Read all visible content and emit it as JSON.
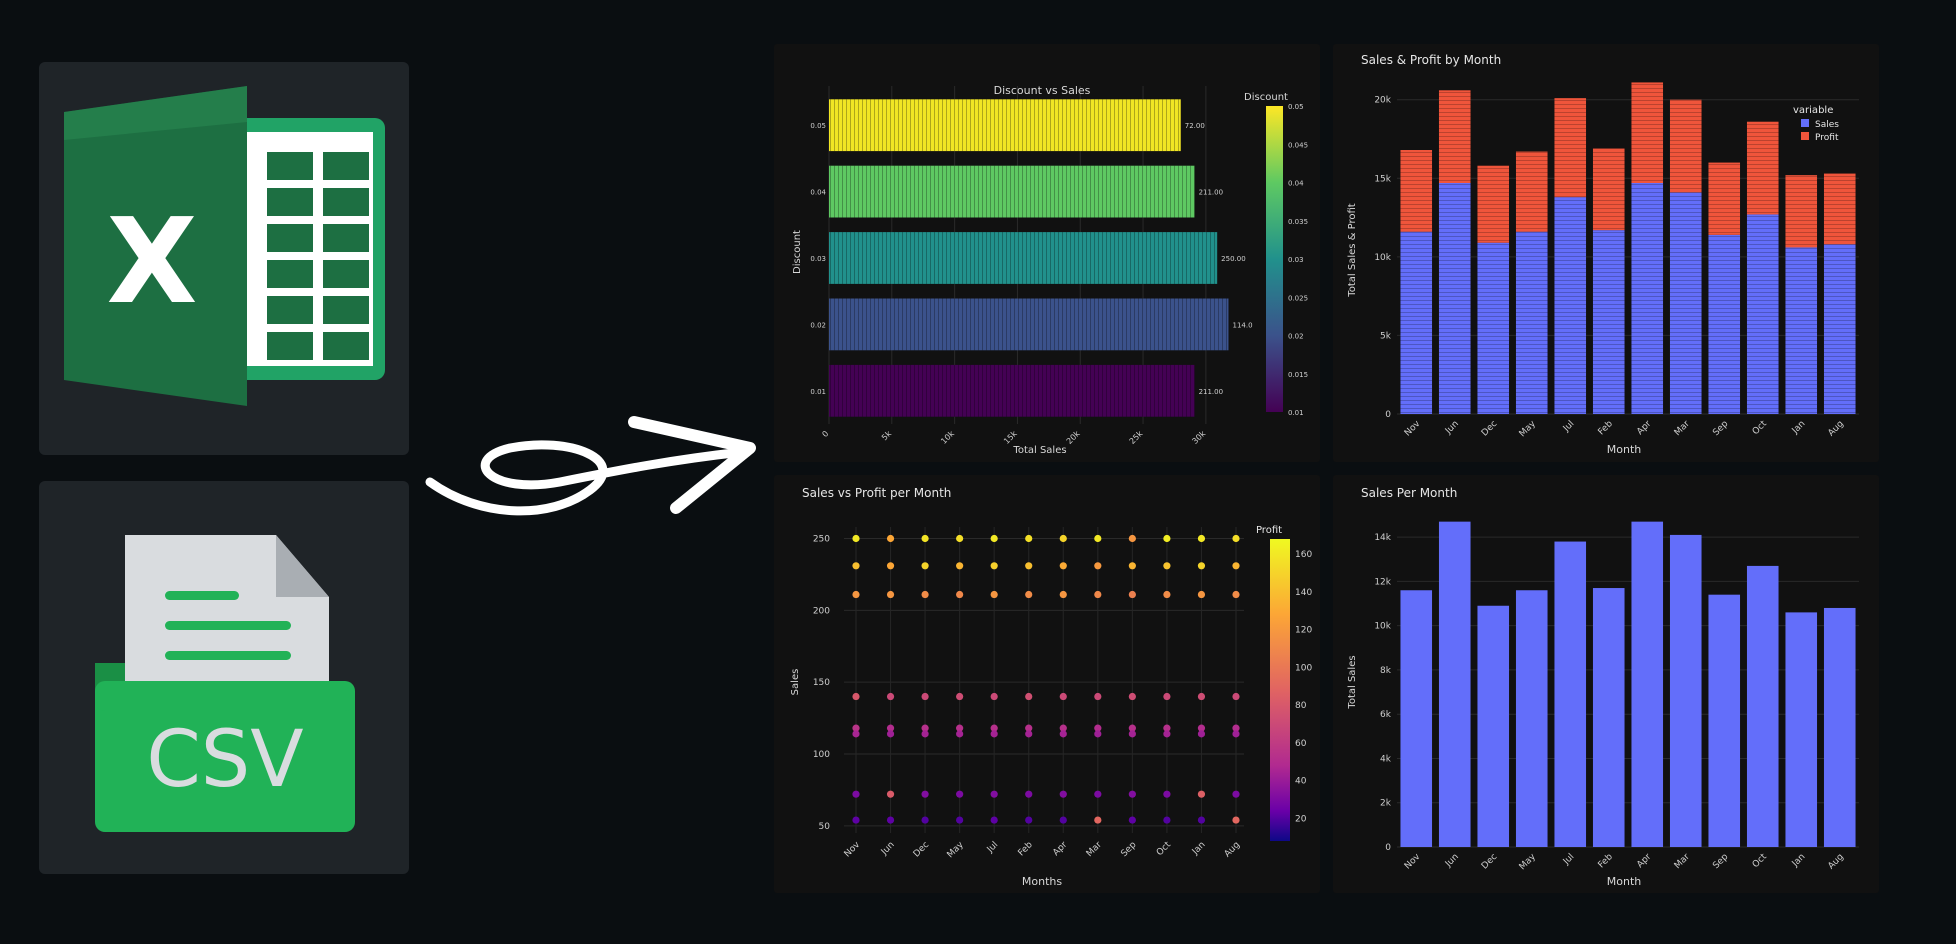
{
  "colors": {
    "background": "#0a0e11",
    "tile": "#1f2428",
    "panel": "#111111",
    "excel_green": "#1d6f42",
    "csv_green": "#21b257",
    "sales_blue": "#636efa",
    "profit_red": "#ef553b"
  },
  "icons": {
    "excel": "excel-icon",
    "excel_letter": "X",
    "csv": "csv-file-icon",
    "csv_label": "CSV",
    "arrow": "curly-arrow-icon"
  },
  "chart_data": [
    {
      "type": "bar",
      "orientation": "horizontal",
      "title": "Discount vs Sales",
      "xlabel": "Total Sales",
      "ylabel": "Discount",
      "xticks": [
        "0",
        "5k",
        "10k",
        "15k",
        "20k",
        "25k",
        "30k"
      ],
      "xlim": [
        0,
        32000
      ],
      "categories": [
        "0.05",
        "0.04",
        "0.03",
        "0.02",
        "0.01"
      ],
      "values": [
        28000,
        29100,
        30900,
        31800,
        29100
      ],
      "data_labels": [
        "72.00",
        "211.00",
        "250.00",
        "114.0",
        "211.00"
      ],
      "bar_colors": [
        "#f1e624",
        "#5ec962",
        "#21918c",
        "#3b528b",
        "#440154"
      ],
      "colorbar": {
        "title": "Discount",
        "ticks": [
          "0.05",
          "0.045",
          "0.04",
          "0.035",
          "0.03",
          "0.025",
          "0.02",
          "0.015",
          "0.01"
        ],
        "colorscale": "viridis"
      }
    },
    {
      "type": "bar",
      "stacked": true,
      "title": "Sales & Profit by Month",
      "xlabel": "Month",
      "ylabel": "Total Sales & Profit",
      "ylim": [
        0,
        21000
      ],
      "yticks": [
        "0",
        "5k",
        "10k",
        "15k",
        "20k"
      ],
      "categories": [
        "Nov",
        "Jun",
        "Dec",
        "May",
        "Jul",
        "Feb",
        "Apr",
        "Mar",
        "Sep",
        "Oct",
        "Jan",
        "Aug"
      ],
      "series": [
        {
          "name": "Sales",
          "values": [
            11600,
            14700,
            10900,
            11600,
            13800,
            11700,
            14700,
            14100,
            11400,
            12700,
            10600,
            10800
          ]
        },
        {
          "name": "Profit",
          "values": [
            5200,
            5900,
            4900,
            5100,
            6300,
            5200,
            6400,
            5900,
            4600,
            5900,
            4600,
            4500
          ]
        }
      ],
      "legend": {
        "title": "variable",
        "placement": "top-right"
      }
    },
    {
      "type": "scatter",
      "title": "Sales vs Profit per Month",
      "xlabel": "Months",
      "ylabel": "Sales",
      "ylim": [
        45,
        258
      ],
      "yticks": [
        "50",
        "100",
        "150",
        "200",
        "250"
      ],
      "categories": [
        "Nov",
        "Jun",
        "Dec",
        "May",
        "Jul",
        "Feb",
        "Apr",
        "Mar",
        "Sep",
        "Oct",
        "Jan",
        "Aug"
      ],
      "rows": [
        {
          "sales": 250,
          "profit": [
            160,
            128,
            158,
            155,
            160,
            156,
            150,
            160,
            118,
            162,
            160,
            155
          ]
        },
        {
          "sales": 231,
          "profit": [
            140,
            128,
            150,
            135,
            148,
            140,
            130,
            120,
            135,
            142,
            150,
            135
          ]
        },
        {
          "sales": 211,
          "profit": [
            118,
            118,
            112,
            110,
            118,
            112,
            118,
            110,
            105,
            112,
            118,
            112
          ]
        },
        {
          "sales": 140,
          "profit": [
            80,
            70,
            70,
            72,
            70,
            74,
            70,
            70,
            72,
            70,
            72,
            70
          ]
        },
        {
          "sales": 118,
          "profit": [
            55,
            50,
            52,
            52,
            52,
            52,
            52,
            50,
            52,
            52,
            50,
            50
          ]
        },
        {
          "sales": 114,
          "profit": [
            45,
            42,
            44,
            44,
            44,
            44,
            44,
            42,
            44,
            44,
            42,
            42
          ]
        },
        {
          "sales": 72,
          "profit": [
            30,
            82,
            32,
            30,
            32,
            30,
            32,
            30,
            32,
            30,
            85,
            30
          ]
        },
        {
          "sales": 54,
          "profit": [
            22,
            22,
            20,
            20,
            22,
            20,
            20,
            90,
            22,
            20,
            20,
            90
          ]
        }
      ],
      "colorbar": {
        "title": "Profit",
        "ticks": [
          "160",
          "140",
          "120",
          "100",
          "80",
          "60",
          "40",
          "20"
        ],
        "range": [
          8,
          168
        ],
        "colorscale": "plasma"
      }
    },
    {
      "type": "bar",
      "title": "Sales Per Month",
      "xlabel": "Month",
      "ylabel": "Total Sales",
      "ylim": [
        0,
        15000
      ],
      "yticks": [
        "0",
        "2k",
        "4k",
        "6k",
        "8k",
        "10k",
        "12k",
        "14k"
      ],
      "categories": [
        "Nov",
        "Jun",
        "Dec",
        "May",
        "Jul",
        "Feb",
        "Apr",
        "Mar",
        "Sep",
        "Oct",
        "Jan",
        "Aug"
      ],
      "values": [
        11600,
        14700,
        10900,
        11600,
        13800,
        11700,
        14700,
        14100,
        11400,
        12700,
        10600,
        10800
      ]
    }
  ]
}
